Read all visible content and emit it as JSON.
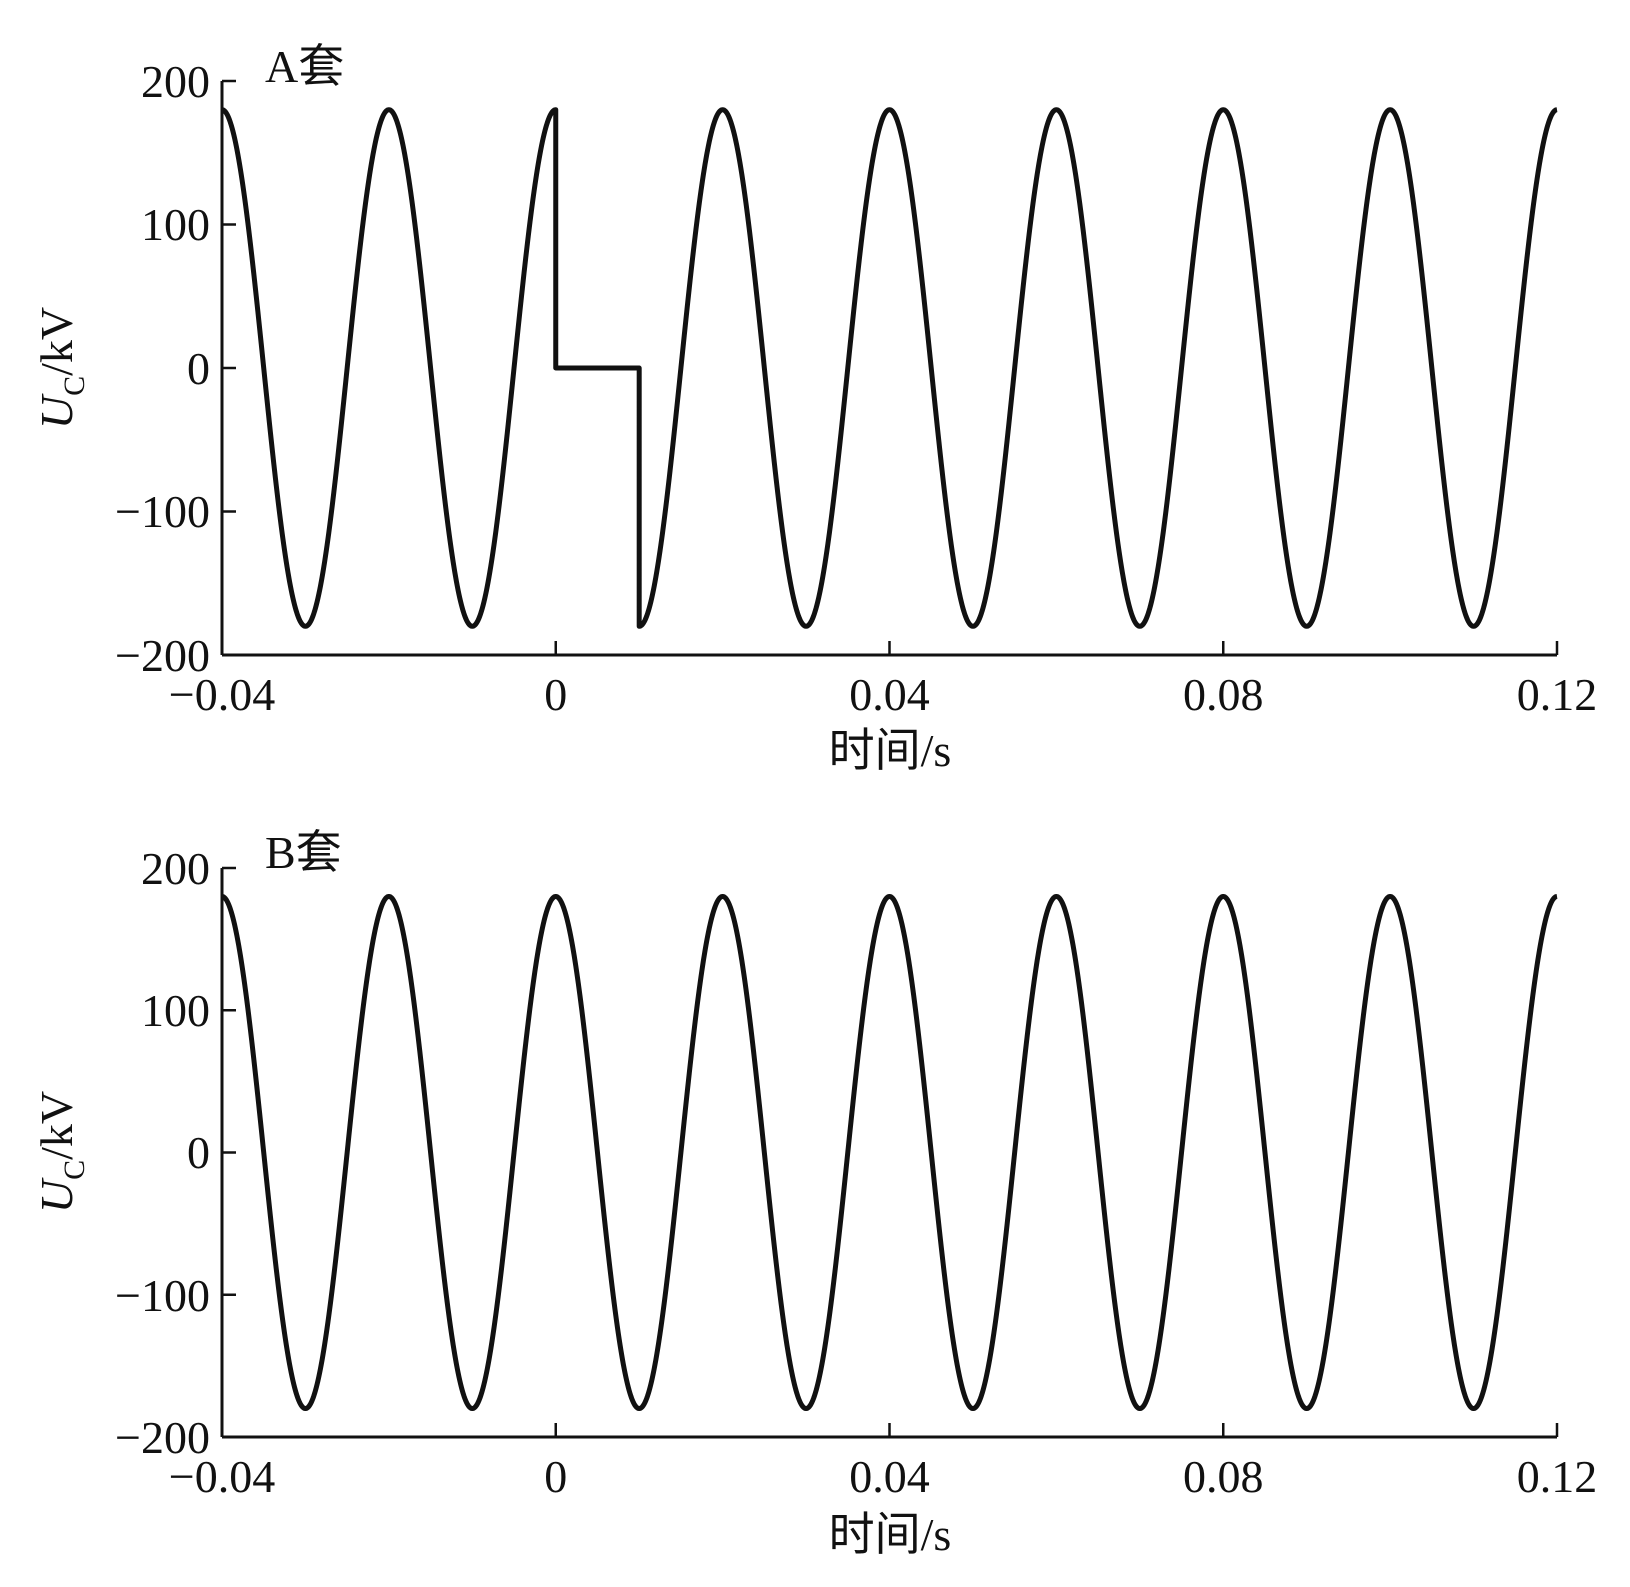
{
  "chart_data": [
    {
      "type": "line",
      "panel_label": "A套",
      "xlabel": "时间/s",
      "ylabel_main": "U",
      "ylabel_sub": "C",
      "ylabel_unit": "/kV",
      "xlim": [
        -0.04,
        0.12
      ],
      "ylim": [
        -200,
        200
      ],
      "xticks": [
        -0.04,
        0,
        0.04,
        0.08,
        0.12
      ],
      "xtick_labels": [
        "−0.04",
        "0",
        "0.04",
        "0.08",
        "0.12"
      ],
      "yticks": [
        200,
        100,
        0,
        -100,
        -200
      ],
      "ytick_labels": [
        "200",
        "100",
        "0",
        "−100",
        "−200"
      ],
      "series": [
        {
          "amplitude": 180,
          "frequency_hz": 50,
          "waveform": "cosine",
          "line_color": "#111111",
          "zero_interval": [
            0,
            0.01
          ],
          "points": [
            [
              -0.04,
              180
            ],
            [
              -0.03,
              -180
            ],
            [
              -0.02,
              180
            ],
            [
              -0.01,
              -180
            ],
            [
              0,
              180
            ],
            [
              0,
              0
            ],
            [
              0.01,
              0
            ],
            [
              0.01,
              -180
            ],
            [
              0.02,
              180
            ],
            [
              0.03,
              -180
            ],
            [
              0.04,
              180
            ],
            [
              0.05,
              -180
            ],
            [
              0.06,
              180
            ],
            [
              0.07,
              -180
            ],
            [
              0.08,
              180
            ],
            [
              0.09,
              -180
            ],
            [
              0.1,
              180
            ],
            [
              0.11,
              -180
            ],
            [
              0.12,
              180
            ]
          ]
        }
      ]
    },
    {
      "type": "line",
      "panel_label": "B套",
      "xlabel": "时间/s",
      "ylabel_main": "U",
      "ylabel_sub": "C",
      "ylabel_unit": "/kV",
      "xlim": [
        -0.04,
        0.12
      ],
      "ylim": [
        -200,
        200
      ],
      "xticks": [
        -0.04,
        0,
        0.04,
        0.08,
        0.12
      ],
      "xtick_labels": [
        "−0.04",
        "0",
        "0.04",
        "0.08",
        "0.12"
      ],
      "yticks": [
        200,
        100,
        0,
        -100,
        -200
      ],
      "ytick_labels": [
        "200",
        "100",
        "0",
        "−100",
        "−200"
      ],
      "series": [
        {
          "amplitude": 180,
          "frequency_hz": 50,
          "waveform": "cosine",
          "line_color": "#111111",
          "points": [
            [
              -0.04,
              180
            ],
            [
              -0.03,
              -180
            ],
            [
              -0.02,
              180
            ],
            [
              -0.01,
              -180
            ],
            [
              0,
              180
            ],
            [
              0.01,
              -180
            ],
            [
              0.02,
              180
            ],
            [
              0.03,
              -180
            ],
            [
              0.04,
              180
            ],
            [
              0.05,
              -180
            ],
            [
              0.06,
              180
            ],
            [
              0.07,
              -180
            ],
            [
              0.08,
              180
            ],
            [
              0.09,
              -180
            ],
            [
              0.1,
              180
            ],
            [
              0.11,
              -180
            ],
            [
              0.12,
              180
            ]
          ]
        }
      ]
    }
  ]
}
